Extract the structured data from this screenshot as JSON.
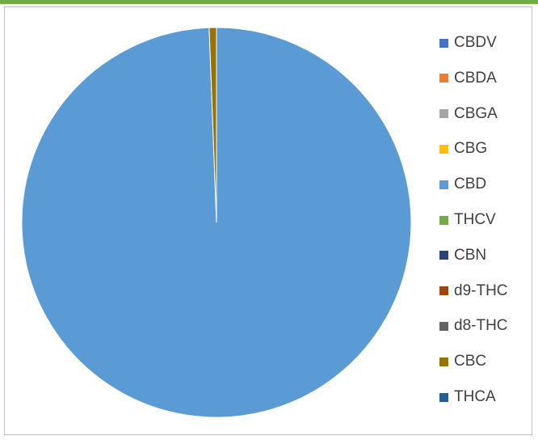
{
  "chart_data": {
    "type": "pie",
    "title": "",
    "legend_position": "right",
    "categories": [
      "CBDV",
      "CBDA",
      "CBGA",
      "CBG",
      "CBD",
      "THCV",
      "CBN",
      "d9-THC",
      "d8-THC",
      "CBC",
      "THCA"
    ],
    "values": [
      0,
      0,
      0,
      0,
      99.4,
      0,
      0,
      0,
      0,
      0.6,
      0
    ],
    "colors": [
      "#4472c4",
      "#ed7d31",
      "#a5a5a5",
      "#ffc000",
      "#5b9bd5",
      "#70ad47",
      "#264478",
      "#9e480e",
      "#636363",
      "#997300",
      "#255e91"
    ]
  },
  "frame": {
    "accent_color": "#70ad47",
    "border_color": "#bfbfbf"
  }
}
